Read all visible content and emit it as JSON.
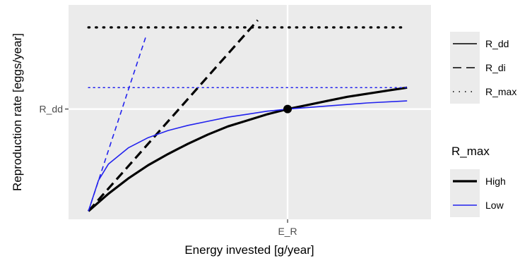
{
  "chart_data": {
    "type": "line",
    "xlabel": "Energy invested [g/year]",
    "ylabel": "Reproduction rate [eggs/year]",
    "x_tick_labels": [
      {
        "label": "E_R",
        "value": 1.0
      }
    ],
    "y_tick_labels": [
      {
        "label": "R_dd",
        "value": 1.0
      }
    ],
    "xlim": [
      -0.1,
      1.72
    ],
    "ylim": [
      -0.08,
      2.02
    ],
    "grid": true,
    "legend_linetype": {
      "entries": [
        {
          "name": "R_dd",
          "style": "solid"
        },
        {
          "name": "R_di",
          "style": "dashed"
        },
        {
          "name": "R_max",
          "style": "dotted"
        }
      ]
    },
    "legend_color": {
      "title": "R_max",
      "entries": [
        {
          "name": "High",
          "color": "#000000"
        },
        {
          "name": "Low",
          "color": "#2222ee"
        }
      ]
    },
    "series": [
      {
        "group": "High",
        "color": "#000000",
        "rmax": 1.8,
        "r_dd_points": [
          {
            "x": 0.0,
            "y": 0.0
          },
          {
            "x": 0.1,
            "y": 0.17
          },
          {
            "x": 0.2,
            "y": 0.32
          },
          {
            "x": 0.3,
            "y": 0.45
          },
          {
            "x": 0.4,
            "y": 0.56
          },
          {
            "x": 0.5,
            "y": 0.66
          },
          {
            "x": 0.6,
            "y": 0.75
          },
          {
            "x": 0.7,
            "y": 0.83
          },
          {
            "x": 0.8,
            "y": 0.89
          },
          {
            "x": 0.9,
            "y": 0.95
          },
          {
            "x": 1.0,
            "y": 1.0
          },
          {
            "x": 1.1,
            "y": 1.04
          },
          {
            "x": 1.2,
            "y": 1.08
          },
          {
            "x": 1.3,
            "y": 1.12
          },
          {
            "x": 1.4,
            "y": 1.15
          },
          {
            "x": 1.5,
            "y": 1.18
          },
          {
            "x": 1.6,
            "y": 1.21
          }
        ],
        "r_di_points": [
          {
            "x": 0.0,
            "y": 0.0
          },
          {
            "x": 0.85,
            "y": 1.87
          }
        ]
      },
      {
        "group": "Low",
        "color": "#2222ee",
        "rmax": 1.21,
        "r_dd_points": [
          {
            "x": 0.0,
            "y": 0.0
          },
          {
            "x": 0.05,
            "y": 0.3
          },
          {
            "x": 0.1,
            "y": 0.46
          },
          {
            "x": 0.2,
            "y": 0.62
          },
          {
            "x": 0.3,
            "y": 0.72
          },
          {
            "x": 0.4,
            "y": 0.79
          },
          {
            "x": 0.5,
            "y": 0.84
          },
          {
            "x": 0.6,
            "y": 0.88
          },
          {
            "x": 0.7,
            "y": 0.92
          },
          {
            "x": 0.8,
            "y": 0.95
          },
          {
            "x": 0.9,
            "y": 0.98
          },
          {
            "x": 1.0,
            "y": 1.0
          },
          {
            "x": 1.2,
            "y": 1.03
          },
          {
            "x": 1.4,
            "y": 1.06
          },
          {
            "x": 1.6,
            "y": 1.08
          }
        ],
        "r_di_points": [
          {
            "x": 0.0,
            "y": 0.0
          },
          {
            "x": 0.29,
            "y": 1.72
          }
        ]
      }
    ],
    "highlight_point": {
      "x": 1.0,
      "y": 1.0
    }
  }
}
